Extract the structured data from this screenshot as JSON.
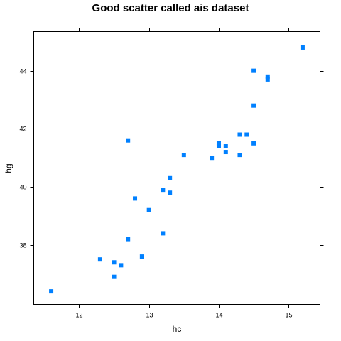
{
  "chart_data": {
    "type": "scatter",
    "title": "Good scatter called ais dataset",
    "xlabel": "hc",
    "ylabel": "hg",
    "xlim": [
      11.35,
      15.45
    ],
    "ylim": [
      35.95,
      45.35
    ],
    "xticks": [
      12,
      13,
      14,
      15
    ],
    "yticks": [
      38,
      40,
      42,
      44
    ],
    "grid": false,
    "point_color": "#0080ff",
    "points": [
      {
        "x": 11.6,
        "y": 36.4
      },
      {
        "x": 12.3,
        "y": 37.5
      },
      {
        "x": 12.5,
        "y": 37.4
      },
      {
        "x": 12.5,
        "y": 36.9
      },
      {
        "x": 12.6,
        "y": 37.3
      },
      {
        "x": 12.7,
        "y": 38.2
      },
      {
        "x": 12.7,
        "y": 41.6
      },
      {
        "x": 12.8,
        "y": 39.6
      },
      {
        "x": 12.9,
        "y": 37.6
      },
      {
        "x": 13.0,
        "y": 39.2
      },
      {
        "x": 13.2,
        "y": 39.9
      },
      {
        "x": 13.2,
        "y": 38.4
      },
      {
        "x": 13.3,
        "y": 40.3
      },
      {
        "x": 13.3,
        "y": 39.8
      },
      {
        "x": 13.5,
        "y": 41.1
      },
      {
        "x": 13.9,
        "y": 41.0
      },
      {
        "x": 14.0,
        "y": 41.5
      },
      {
        "x": 14.0,
        "y": 41.4
      },
      {
        "x": 14.1,
        "y": 41.4
      },
      {
        "x": 14.1,
        "y": 41.2
      },
      {
        "x": 14.3,
        "y": 41.8
      },
      {
        "x": 14.3,
        "y": 41.1
      },
      {
        "x": 14.4,
        "y": 41.8
      },
      {
        "x": 14.5,
        "y": 44.0
      },
      {
        "x": 14.5,
        "y": 42.8
      },
      {
        "x": 14.5,
        "y": 41.5
      },
      {
        "x": 14.7,
        "y": 43.8
      },
      {
        "x": 14.7,
        "y": 43.7
      },
      {
        "x": 15.2,
        "y": 44.8
      }
    ]
  }
}
